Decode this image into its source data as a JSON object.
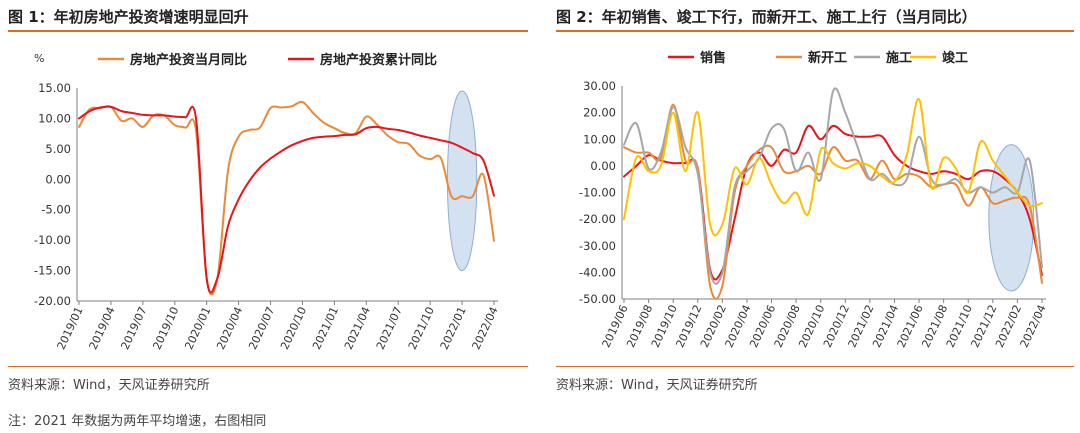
{
  "left_panel": {
    "title": "图 1：年初房地产投资增速明显回升",
    "source": "资料来源：Wind，天风证券研究所"
  },
  "right_panel": {
    "title": "图 2：年初销售、竣工下行，而新开工、施工上行（当月同比）",
    "source": "资料来源：Wind，天风证券研究所"
  },
  "note": "注：2021 年数据为两年平均增速，右图相同",
  "chart_data": [
    {
      "type": "line",
      "ylabel": "%",
      "ylim": [
        -20,
        15
      ],
      "yticks": [
        15,
        10,
        5,
        0,
        -5,
        -10,
        -15,
        -20
      ],
      "ytick_labels": [
        "15.00",
        "10.00",
        "5.00",
        "0.00",
        "-5.00",
        "-10.00",
        "-15.00",
        "-20.00"
      ],
      "x": [
        "2019/01",
        "2019/02",
        "2019/03",
        "2019/04",
        "2019/05",
        "2019/06",
        "2019/07",
        "2019/08",
        "2019/09",
        "2019/10",
        "2019/11",
        "2019/12",
        "2020/01",
        "2020/02",
        "2020/03",
        "2020/04",
        "2020/05",
        "2020/06",
        "2020/07",
        "2020/08",
        "2020/09",
        "2020/10",
        "2020/11",
        "2020/12",
        "2021/01",
        "2021/02",
        "2021/03",
        "2021/04",
        "2021/05",
        "2021/06",
        "2021/07",
        "2021/08",
        "2021/09",
        "2021/10",
        "2021/11",
        "2021/12",
        "2022/01",
        "2022/02",
        "2022/03",
        "2022/04"
      ],
      "xtick_labels": [
        "2019/01",
        "2019/04",
        "2019/07",
        "2019/10",
        "2020/01",
        "2020/04",
        "2020/07",
        "2020/10",
        "2021/01",
        "2021/04",
        "2021/07",
        "2021/10",
        "2022/01",
        "2022/04"
      ],
      "legend": "top",
      "highlight_ellipse": {
        "x_from": "2021/12",
        "x_to": "2022/02",
        "y_from": 14.5,
        "y_to": -15
      },
      "series": [
        {
          "name": "房地产投资当月同比",
          "color": "#e88a3a",
          "values": [
            8.6,
            11.5,
            11.7,
            11.9,
            9.6,
            10.0,
            8.6,
            10.5,
            10.5,
            8.9,
            8.5,
            7.9,
            -16.3,
            -16.3,
            1.4,
            7.0,
            8.1,
            8.5,
            11.7,
            11.8,
            12.0,
            12.7,
            10.9,
            9.3,
            8.4,
            7.6,
            7.6,
            10.3,
            9.0,
            7.2,
            6.1,
            5.8,
            3.9,
            3.3,
            3.5,
            -2.8,
            -2.8,
            -2.8,
            0.7,
            -10.1
          ]
        },
        {
          "name": "房地产投资累计同比",
          "color": "#e8141a",
          "values": [
            10.0,
            11.2,
            11.8,
            11.9,
            11.2,
            10.9,
            10.6,
            10.5,
            10.5,
            10.3,
            10.2,
            9.9,
            -16.3,
            -16.3,
            -7.7,
            -3.3,
            -0.3,
            1.9,
            3.4,
            4.6,
            5.6,
            6.3,
            6.8,
            7.0,
            7.1,
            7.3,
            7.4,
            8.4,
            8.6,
            8.3,
            8.1,
            7.7,
            7.2,
            6.8,
            6.4,
            6.0,
            5.2,
            4.3,
            3.1,
            -2.7
          ]
        }
      ]
    },
    {
      "type": "line",
      "ylim": [
        -50,
        30
      ],
      "yticks": [
        30,
        20,
        10,
        0,
        -10,
        -20,
        -30,
        -40,
        -50
      ],
      "ytick_labels": [
        "30.00",
        "20.00",
        "10.00",
        "0.00",
        "-10.00",
        "-20.00",
        "-30.00",
        "-40.00",
        "-50.00"
      ],
      "x": [
        "2019/06",
        "2019/07",
        "2019/08",
        "2019/09",
        "2019/10",
        "2019/11",
        "2019/12",
        "2020/01",
        "2020/02",
        "2020/03",
        "2020/04",
        "2020/05",
        "2020/06",
        "2020/07",
        "2020/08",
        "2020/09",
        "2020/10",
        "2020/11",
        "2020/12",
        "2021/01",
        "2021/02",
        "2021/03",
        "2021/04",
        "2021/05",
        "2021/06",
        "2021/07",
        "2021/08",
        "2021/09",
        "2021/10",
        "2021/11",
        "2021/12",
        "2022/01",
        "2022/02",
        "2022/03",
        "2022/04"
      ],
      "xtick_labels": [
        "2019/06",
        "2019/08",
        "2019/10",
        "2019/12",
        "2020/02",
        "2020/04",
        "2020/06",
        "2020/08",
        "2020/10",
        "2020/12",
        "2021/02",
        "2021/04",
        "2021/06",
        "2021/08",
        "2021/10",
        "2021/12",
        "2022/02",
        "2022/04"
      ],
      "legend": "top",
      "highlight_ellipse": {
        "x_from": "2021/12",
        "x_to": "2022/03",
        "y_from": 8,
        "y_to": -47
      },
      "series": [
        {
          "name": "销售",
          "color": "#e8141a",
          "values": [
            -4,
            0,
            4,
            2,
            1,
            1,
            -1,
            -39,
            -39,
            -20,
            0,
            5,
            0,
            6,
            5,
            15,
            10,
            15,
            12,
            11,
            11,
            11,
            4,
            0,
            -2,
            -3,
            -2,
            -3,
            -5,
            -2,
            -2,
            -5,
            -10,
            -20,
            -41
          ]
        },
        {
          "name": "新开工",
          "color": "#e88a3a",
          "values": [
            7,
            5,
            5,
            3,
            23,
            2,
            -1,
            -45,
            -45,
            -10,
            0,
            6,
            7,
            -2,
            -2,
            0,
            -3,
            7,
            2,
            2,
            -5,
            2,
            -5,
            -3,
            -4,
            -8,
            -7,
            -7,
            -15,
            -8,
            -14,
            -13,
            -12,
            -15,
            -44
          ]
        },
        {
          "name": "施工",
          "color": "#a6a6a6",
          "values": [
            8,
            16,
            -1,
            5,
            22,
            7,
            -3,
            -40,
            -40,
            -8,
            -2,
            3,
            14,
            14,
            -2,
            5,
            -5,
            28,
            20,
            7,
            -5,
            -3,
            -7,
            -5,
            11,
            -5,
            -7,
            -5,
            -10,
            -8,
            -10,
            -8,
            -10,
            2,
            -38
          ]
        },
        {
          "name": "竣工",
          "color": "#ffc000",
          "values": [
            -20,
            3,
            -2,
            0,
            20,
            -2,
            20,
            -22,
            -22,
            -1,
            -7,
            3,
            -7,
            -14,
            -10,
            -18,
            6,
            1,
            -1,
            1,
            0,
            -4,
            -6,
            4,
            25,
            -8,
            3,
            -1,
            -10,
            9,
            2,
            -4,
            -10,
            -15,
            -14
          ]
        }
      ]
    }
  ]
}
